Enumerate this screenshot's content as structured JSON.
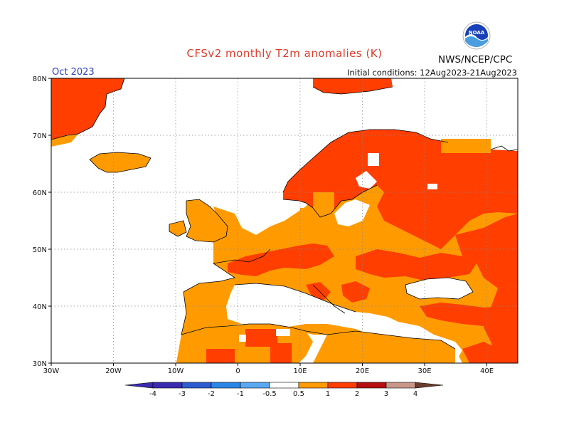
{
  "title": "CFSv2 monthly T2m anomalies (K)",
  "month": "Oct 2023",
  "initial_conditions": "Initial conditions: 12Aug2023-21Aug2023",
  "agency": "NWS/NCEP/CPC",
  "logo_text": "NOAA",
  "map": {
    "lon_range": [
      -30,
      45
    ],
    "lat_range": [
      30,
      80
    ],
    "lon_ticks": [
      "30W",
      "20W",
      "10W",
      "0",
      "10E",
      "20E",
      "30E",
      "40E"
    ],
    "lat_ticks": [
      "30N",
      "40N",
      "50N",
      "60N",
      "70N",
      "80N"
    ]
  },
  "colorbar": {
    "labels": [
      "-4",
      "-3",
      "-2",
      "-1",
      "-0.5",
      "0.5",
      "1",
      "2",
      "3",
      "4"
    ],
    "colors": [
      "#3b2bb0",
      "#2d5cd1",
      "#2b86e6",
      "#5aa8f2",
      "#9cc8f6",
      "#ffffff",
      "#ff9b00",
      "#ff3e00",
      "#b50f0f",
      "#c9968a",
      "#6b3d30"
    ]
  },
  "legend_levels": {
    "white": "-0.5 to 0.5",
    "orange": "0.5 to 1",
    "red_orange": "1 to 2"
  }
}
